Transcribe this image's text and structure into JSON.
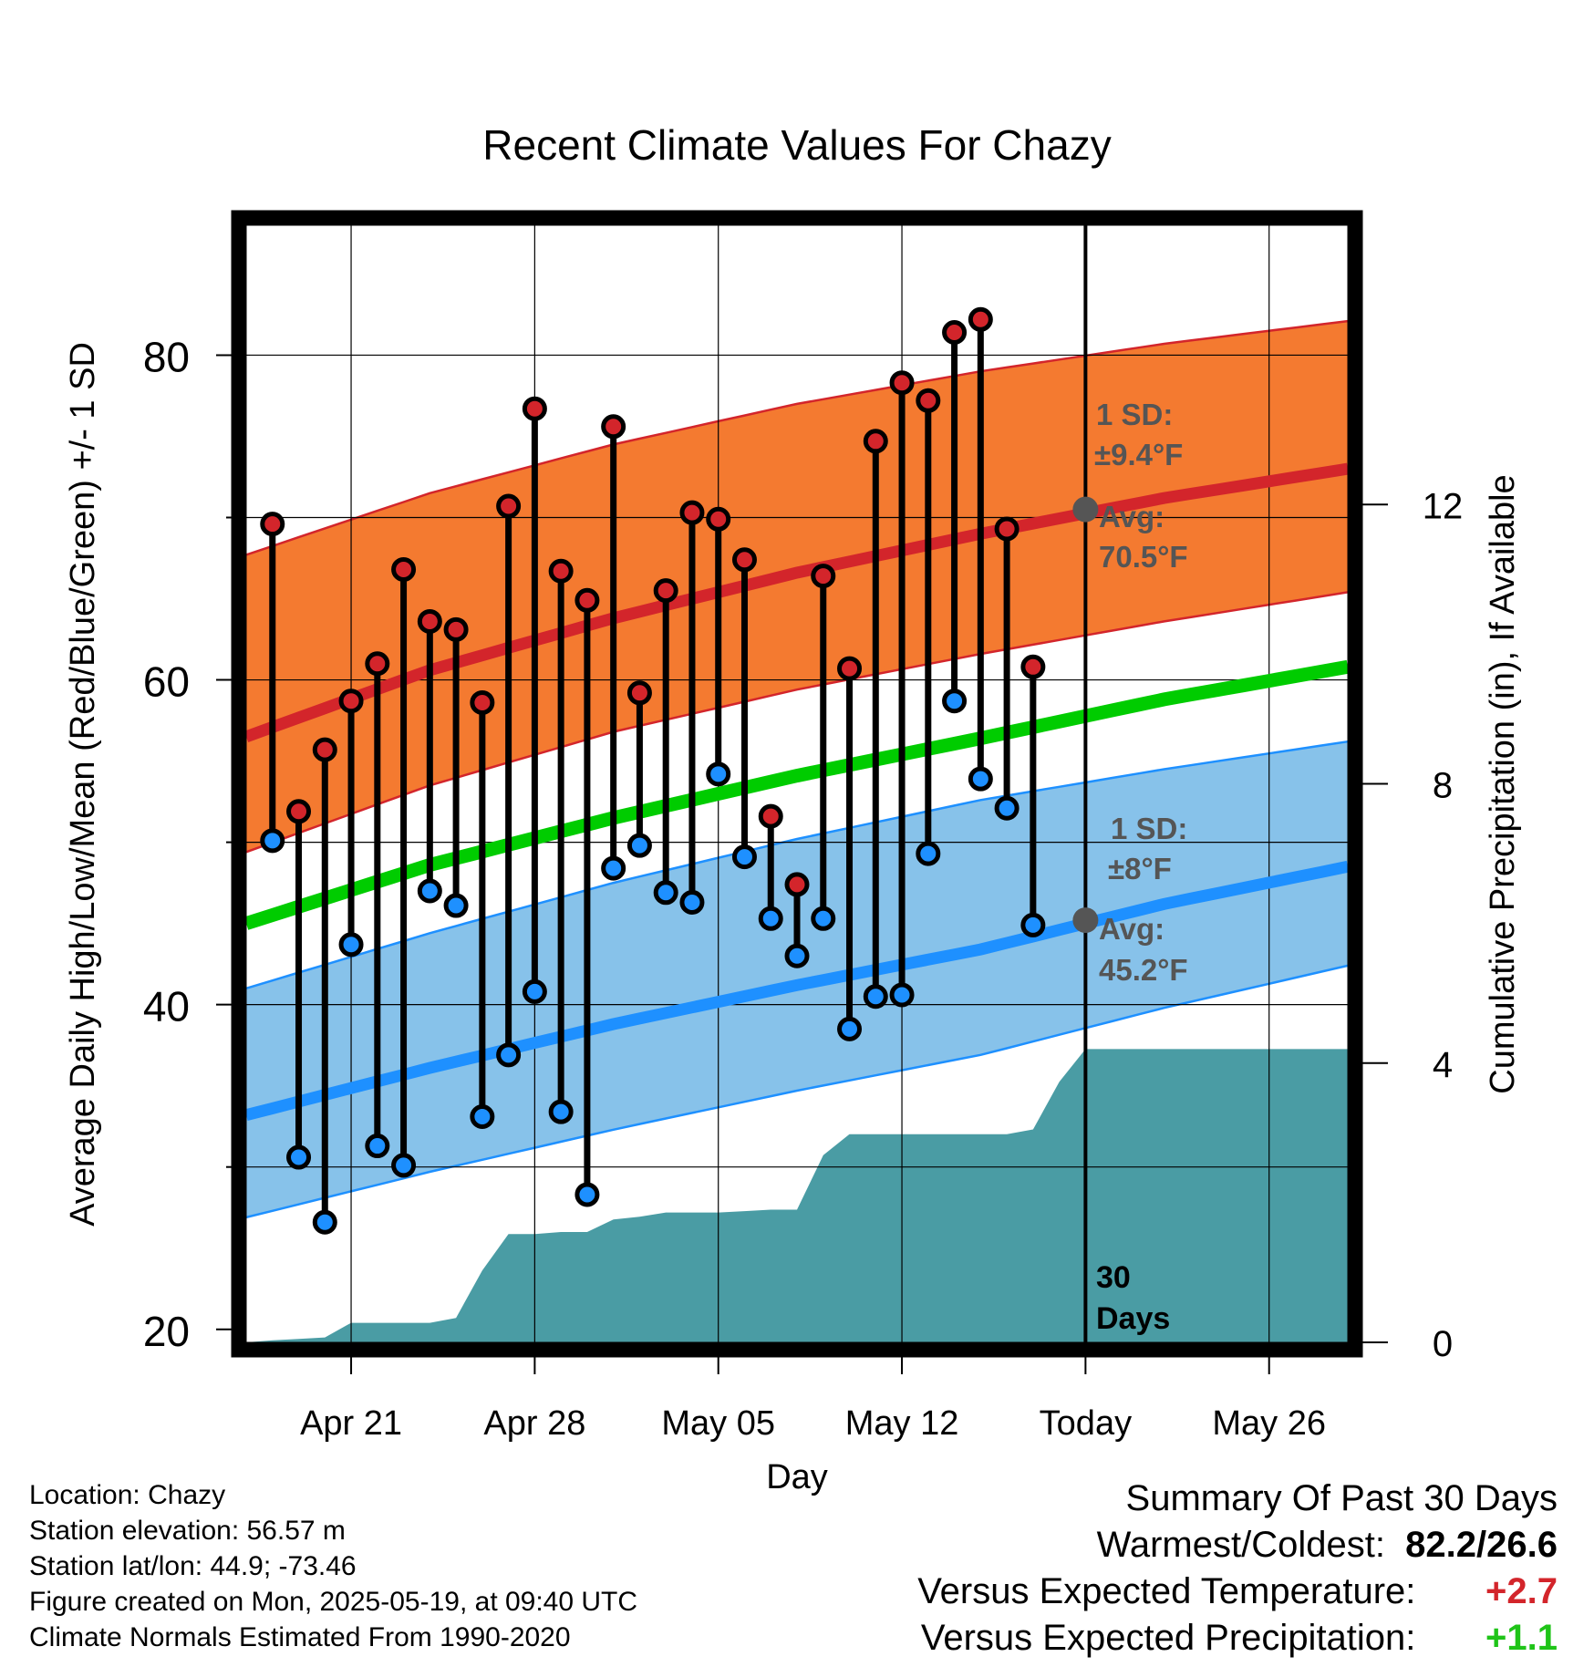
{
  "chart_data": {
    "type": "line",
    "title": "Recent Climate Values For Chazy",
    "xlabel": "Day",
    "ylabel": "Average Daily High/Low/Mean (Red/Blue/Green) +/- 1 SD",
    "ylabel_right": "Cumulative Precipitation (in), If Available",
    "ylim": [
      19.2,
      88.0
    ],
    "y2lim": [
      0,
      16
    ],
    "yticks": [
      20,
      40,
      60,
      80
    ],
    "y2ticks": [
      0,
      4,
      8,
      12
    ],
    "xlim": [
      "2025-04-17",
      "2025-05-29"
    ],
    "xticks": [
      {
        "date": "2025-04-21",
        "label": "Apr 21"
      },
      {
        "date": "2025-04-28",
        "label": "Apr 28"
      },
      {
        "date": "2025-05-05",
        "label": "May 05"
      },
      {
        "date": "2025-05-12",
        "label": "May 12"
      },
      {
        "date": "2025-05-19",
        "label": "Today"
      },
      {
        "date": "2025-05-26",
        "label": "May 26"
      }
    ],
    "grid": true,
    "colors": {
      "high": "#d3252b",
      "low": "#1e90ff",
      "mean": "#00cc00",
      "high_band": "#f47a30",
      "low_band": "#87c2ea",
      "precip": "#4a9ca4",
      "avg_marker": "#555555"
    },
    "normal_high": {
      "dates": [
        "2025-04-17",
        "2025-04-24",
        "2025-05-01",
        "2025-05-08",
        "2025-05-15",
        "2025-05-22",
        "2025-05-29"
      ],
      "mean": [
        56.5,
        60.6,
        63.8,
        66.6,
        69.0,
        71.2,
        73.0
      ],
      "upper": [
        67.7,
        71.5,
        74.5,
        77.0,
        79.0,
        80.7,
        82.1
      ],
      "lower": [
        49.4,
        53.5,
        56.8,
        59.4,
        61.6,
        63.6,
        65.4
      ]
    },
    "normal_low": {
      "dates": [
        "2025-04-17",
        "2025-04-24",
        "2025-05-01",
        "2025-05-08",
        "2025-05-15",
        "2025-05-22",
        "2025-05-29"
      ],
      "mean": [
        33.2,
        36.1,
        38.8,
        41.2,
        43.4,
        46.2,
        48.5
      ],
      "upper": [
        41.0,
        44.4,
        47.5,
        50.2,
        52.6,
        54.5,
        56.2
      ],
      "lower": [
        26.9,
        29.7,
        32.3,
        34.7,
        36.9,
        39.8,
        42.4
      ]
    },
    "normal_mean": {
      "dates": [
        "2025-04-17",
        "2025-04-24",
        "2025-05-01",
        "2025-05-08",
        "2025-05-15",
        "2025-05-22",
        "2025-05-29"
      ],
      "values": [
        45.0,
        48.6,
        51.5,
        54.1,
        56.4,
        58.8,
        60.8
      ]
    },
    "daily": {
      "dates": [
        "2025-04-18",
        "2025-04-19",
        "2025-04-20",
        "2025-04-21",
        "2025-04-22",
        "2025-04-23",
        "2025-04-24",
        "2025-04-25",
        "2025-04-26",
        "2025-04-27",
        "2025-04-28",
        "2025-04-29",
        "2025-04-30",
        "2025-05-01",
        "2025-05-02",
        "2025-05-03",
        "2025-05-04",
        "2025-05-05",
        "2025-05-06",
        "2025-05-07",
        "2025-05-08",
        "2025-05-09",
        "2025-05-10",
        "2025-05-11",
        "2025-05-12",
        "2025-05-13",
        "2025-05-14",
        "2025-05-15",
        "2025-05-16",
        "2025-05-17",
        "2025-05-18"
      ],
      "high": [
        69.6,
        51.9,
        55.7,
        58.7,
        61.0,
        66.8,
        63.6,
        63.1,
        58.6,
        70.7,
        76.7,
        66.7,
        64.9,
        75.6,
        59.2,
        65.5,
        70.3,
        69.9,
        67.4,
        51.6,
        47.4,
        66.4,
        60.7,
        74.7,
        78.3,
        77.2,
        81.4,
        82.2,
        69.3,
        60.8,
        null
      ],
      "low": [
        50.1,
        30.6,
        26.6,
        43.7,
        31.3,
        30.1,
        47.0,
        46.1,
        33.1,
        36.9,
        40.8,
        33.4,
        28.3,
        48.4,
        49.8,
        46.9,
        46.3,
        54.2,
        49.1,
        45.3,
        43.0,
        45.3,
        38.5,
        40.5,
        40.6,
        49.3,
        58.7,
        53.9,
        52.1,
        44.9,
        null
      ]
    },
    "precip": {
      "dates": [
        "2025-04-17",
        "2025-04-18",
        "2025-04-19",
        "2025-04-20",
        "2025-04-21",
        "2025-04-22",
        "2025-04-23",
        "2025-04-24",
        "2025-04-25",
        "2025-04-26",
        "2025-04-27",
        "2025-04-28",
        "2025-04-29",
        "2025-04-30",
        "2025-05-01",
        "2025-05-02",
        "2025-05-03",
        "2025-05-04",
        "2025-05-05",
        "2025-05-06",
        "2025-05-07",
        "2025-05-08",
        "2025-05-09",
        "2025-05-10",
        "2025-05-11",
        "2025-05-12",
        "2025-05-13",
        "2025-05-14",
        "2025-05-15",
        "2025-05-16",
        "2025-05-17",
        "2025-05-18",
        "2025-05-19",
        "2025-05-29"
      ],
      "values": [
        0,
        0.03,
        0.05,
        0.07,
        0.28,
        0.28,
        0.28,
        0.28,
        0.35,
        1.03,
        1.55,
        1.55,
        1.58,
        1.58,
        1.76,
        1.8,
        1.86,
        1.86,
        1.86,
        1.88,
        1.9,
        1.9,
        2.68,
        2.98,
        2.98,
        2.98,
        2.98,
        2.98,
        2.98,
        2.98,
        3.05,
        3.73,
        4.2,
        4.2
      ]
    },
    "annotations": {
      "high_sd_label": "1 SD:",
      "high_sd_value": "±9.4°F",
      "high_avg_label": "Avg:",
      "high_avg_value": "70.5°F",
      "high_avg_point": 70.5,
      "low_sd_label": "1 SD:",
      "low_sd_value": "±8°F",
      "low_avg_label": "Avg:",
      "low_avg_value": "45.2°F",
      "low_avg_point": 45.2,
      "today_date": "2025-05-19",
      "days_label_1": "30",
      "days_label_2": "Days"
    }
  },
  "footer": {
    "location": "Location: Chazy",
    "elevation": "Station elevation: 56.57 m",
    "latlon": "Station lat/lon: 44.9; -73.46",
    "created": "Figure created on Mon, 2025-05-19, at 09:40 UTC",
    "normals": "Climate Normals Estimated From 1990-2020"
  },
  "summary": {
    "heading": "Summary Of Past 30 Days",
    "warmest_label": "Warmest/Coldest:",
    "warmest_value": "82.2/26.6",
    "temp_label": "Versus Expected Temperature:",
    "temp_value": "+2.7",
    "precip_label": "Versus Expected Precipitation:",
    "precip_value": "+1.1"
  }
}
